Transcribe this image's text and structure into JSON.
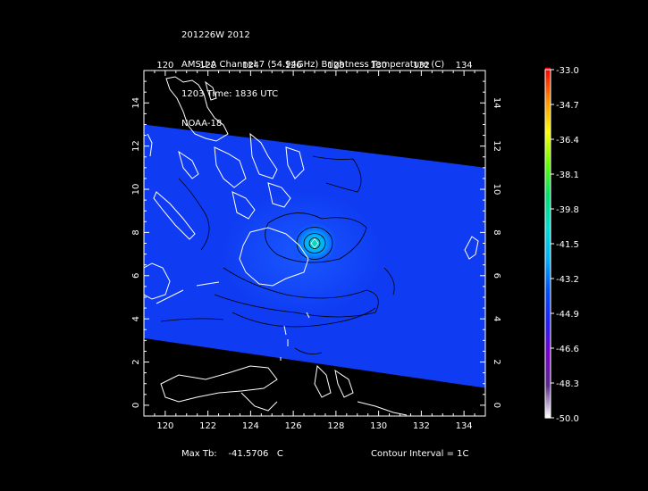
{
  "header": {
    "line1": "201226W 2012",
    "line2": "AMSU-A Channel 7 (54.94GHz) Brightness Temperature (C)",
    "line3": "1203 Time: 1836 UTC",
    "line4": "NOAA-18"
  },
  "footer": {
    "max_tb_label": "Max Tb:",
    "max_tb_value": "-41.5706",
    "max_tb_unit": "C",
    "contour_interval": "Contour Interval = 1C"
  },
  "chart_data": {
    "type": "heatmap",
    "title": "AMSU-A Channel 7 (54.94GHz) Brightness Temperature (C)",
    "xlim": [
      119,
      135
    ],
    "ylim": [
      -0.5,
      15.5
    ],
    "x_ticks": [
      "120",
      "122",
      "124",
      "126",
      "128",
      "130",
      "132",
      "134"
    ],
    "y_ticks": [
      "0",
      "2",
      "4",
      "6",
      "8",
      "10",
      "12",
      "14"
    ],
    "max_tb": -41.5706,
    "max_location": [
      127.0,
      7.5
    ],
    "contour_interval_c": 1,
    "swath_background_c": -46.0,
    "colorbar": {
      "min": -50.0,
      "max": -33.0,
      "tick_labels": [
        "-33.0",
        "-34.7",
        "-36.4",
        "-38.1",
        "-39.8",
        "-41.5",
        "-43.2",
        "-44.9",
        "-46.6",
        "-48.3",
        "-50.0"
      ],
      "colors": [
        "#ffffff",
        "#5a2a8a",
        "#7a00c8",
        "#2020ff",
        "#0050ff",
        "#00b0ff",
        "#00e0d0",
        "#00e070",
        "#60ff00",
        "#ffff00",
        "#ff9000",
        "#ff0000"
      ]
    },
    "swath_edges": {
      "top": [
        [
          119,
          13.0
        ],
        [
          135,
          11.0
        ]
      ],
      "bottom": [
        [
          119,
          3.1
        ],
        [
          135,
          0.8
        ]
      ]
    }
  }
}
